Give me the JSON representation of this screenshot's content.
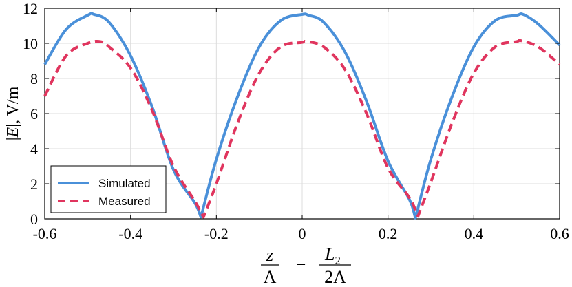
{
  "chart_data": {
    "type": "line",
    "xlabel": "z/Λ − L₂/2Λ",
    "xlabel_parts": {
      "num1": "z",
      "den1": "Λ",
      "minus": "−",
      "num2_main": "L",
      "num2_sub": "2",
      "den2_num": "2",
      "den2_sym": "Λ"
    },
    "ylabel": "|E|, V/m",
    "ylabel_parts": {
      "bar1": "|",
      "sym": "E",
      "bar2": "|",
      "rest": ", V/m"
    },
    "xlim": [
      -0.6,
      0.6
    ],
    "ylim": [
      0,
      12
    ],
    "xticks": [
      -0.6,
      -0.4,
      -0.2,
      0,
      0.2,
      0.4,
      0.6
    ],
    "xtick_labels": [
      "-0.6",
      "-0.4",
      "-0.2",
      "0",
      "0.2",
      "0.4",
      "0.6"
    ],
    "yticks": [
      0,
      2,
      4,
      6,
      8,
      10,
      12
    ],
    "ytick_labels": [
      "0",
      "2",
      "4",
      "6",
      "8",
      "10",
      "12"
    ],
    "grid": true,
    "legend_position": "bottom-left",
    "series": [
      {
        "name": "Simulated",
        "color": "#4a90d9",
        "style": "solid",
        "x": [
          -0.6,
          -0.55,
          -0.5,
          -0.485,
          -0.45,
          -0.4,
          -0.35,
          -0.3,
          -0.25,
          -0.236,
          -0.2,
          -0.15,
          -0.1,
          -0.05,
          0,
          0.015,
          0.05,
          0.1,
          0.15,
          0.2,
          0.25,
          0.264,
          0.3,
          0.35,
          0.4,
          0.45,
          0.5,
          0.515,
          0.55,
          0.6
        ],
        "y": [
          8.8,
          10.8,
          11.6,
          11.65,
          11.2,
          9.3,
          6.4,
          2.8,
          0.9,
          0.1,
          3.4,
          7.0,
          9.8,
          11.3,
          11.65,
          11.6,
          11.2,
          9.5,
          6.7,
          3.3,
          1.1,
          0.05,
          3.4,
          7.0,
          9.8,
          11.3,
          11.6,
          11.65,
          11.1,
          9.9
        ]
      },
      {
        "name": "Measured",
        "color": "#e0355e",
        "style": "dashed",
        "x": [
          -0.6,
          -0.55,
          -0.5,
          -0.47,
          -0.45,
          -0.4,
          -0.35,
          -0.3,
          -0.25,
          -0.23,
          -0.2,
          -0.15,
          -0.1,
          -0.05,
          0,
          0.01,
          0.05,
          0.1,
          0.15,
          0.2,
          0.25,
          0.27,
          0.3,
          0.35,
          0.4,
          0.45,
          0.5,
          0.51,
          0.55,
          0.6
        ],
        "y": [
          7.0,
          9.3,
          10.0,
          10.1,
          9.8,
          8.6,
          6.2,
          3.0,
          1.0,
          0.1,
          2.0,
          5.5,
          8.3,
          9.8,
          10.05,
          10.1,
          9.8,
          8.5,
          6.0,
          2.9,
          1.2,
          0.15,
          2.1,
          5.5,
          8.3,
          9.8,
          10.1,
          10.15,
          9.8,
          8.8
        ]
      }
    ]
  }
}
